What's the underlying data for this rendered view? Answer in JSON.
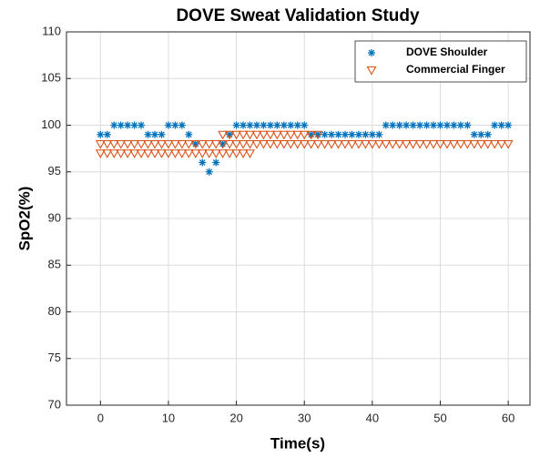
{
  "chart_data": {
    "type": "scatter",
    "title": "DOVE Sweat Validation Study",
    "x_label": "Time(s)",
    "y_label": "SpO2(%)",
    "xlim": [
      -5,
      63.2
    ],
    "ylim": [
      70,
      110
    ],
    "xticks": [
      0,
      10,
      20,
      30,
      40,
      50,
      60
    ],
    "yticks": [
      70,
      75,
      80,
      85,
      90,
      95,
      100,
      105,
      110
    ],
    "grid": true,
    "legend": "top-right",
    "series": [
      {
        "name": "DOVE Shoulder",
        "color": "#0072BD",
        "marker": "asterisk",
        "x": [
          0,
          1,
          2,
          3,
          4,
          5,
          6,
          7,
          8,
          9,
          10,
          11,
          12,
          13,
          14,
          15,
          16,
          17,
          18,
          19,
          20,
          21,
          22,
          23,
          24,
          25,
          26,
          27,
          28,
          29,
          30,
          31,
          32,
          33,
          34,
          35,
          36,
          37,
          38,
          39,
          40,
          41,
          42,
          43,
          44,
          45,
          46,
          47,
          48,
          49,
          50,
          51,
          52,
          53,
          54,
          55,
          56,
          57,
          58,
          59,
          60
        ],
        "values": [
          99,
          99,
          100,
          100,
          100,
          100,
          100,
          99,
          99,
          99,
          100,
          100,
          100,
          99,
          98,
          96,
          95,
          96,
          98,
          99,
          100,
          100,
          100,
          100,
          100,
          100,
          100,
          100,
          100,
          100,
          100,
          99,
          99,
          99,
          99,
          99,
          99,
          99,
          99,
          99,
          99,
          99,
          100,
          100,
          100,
          100,
          100,
          100,
          100,
          100,
          100,
          100,
          100,
          100,
          100,
          99,
          99,
          99,
          100,
          100,
          100
        ]
      },
      {
        "name": "Commercial Finger",
        "color": "#D95319",
        "marker": "triangle-down",
        "x": [
          0,
          1,
          2,
          3,
          4,
          5,
          6,
          7,
          8,
          9,
          10,
          11,
          12,
          13,
          14,
          15,
          16,
          17,
          18,
          19,
          20,
          21,
          22,
          23,
          24,
          25,
          26,
          27,
          28,
          29,
          30,
          31,
          32,
          33,
          34,
          35,
          36,
          37,
          38,
          39,
          40,
          41,
          42,
          43,
          44,
          45,
          46,
          47,
          48,
          49,
          50,
          51,
          52,
          53,
          54,
          55,
          56,
          57,
          58,
          59,
          60,
          0,
          1,
          2,
          3,
          4,
          5,
          6,
          7,
          8,
          9,
          10,
          11,
          12,
          13,
          14,
          15,
          16,
          17,
          18,
          19,
          20,
          21,
          22,
          18,
          19,
          20,
          21,
          22,
          23,
          24,
          25,
          26,
          27,
          28,
          29,
          30,
          31,
          32
        ],
        "values": [
          98,
          98,
          98,
          98,
          98,
          98,
          98,
          98,
          98,
          98,
          98,
          98,
          98,
          98,
          98,
          98,
          98,
          98,
          98,
          98,
          98,
          98,
          98,
          98,
          98,
          98,
          98,
          98,
          98,
          98,
          98,
          98,
          98,
          98,
          98,
          98,
          98,
          98,
          98,
          98,
          98,
          98,
          98,
          98,
          98,
          98,
          98,
          98,
          98,
          98,
          98,
          98,
          98,
          98,
          98,
          98,
          98,
          98,
          98,
          98,
          98,
          97,
          97,
          97,
          97,
          97,
          97,
          97,
          97,
          97,
          97,
          97,
          97,
          97,
          97,
          97,
          97,
          97,
          97,
          97,
          97,
          97,
          97,
          97,
          99,
          99,
          99,
          99,
          99,
          99,
          99,
          99,
          99,
          99,
          99,
          99,
          99,
          99,
          99
        ]
      }
    ]
  }
}
